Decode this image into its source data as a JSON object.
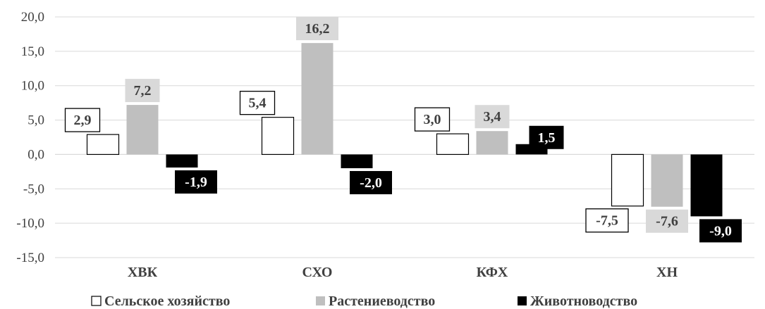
{
  "chart_data": {
    "type": "bar",
    "categories": [
      "ХВК",
      "СХО",
      "КФХ",
      "ХН"
    ],
    "series": [
      {
        "name": "Сельское хозяйство",
        "values": [
          2.9,
          5.4,
          3.0,
          -7.5
        ],
        "labels": [
          "2,9",
          "5,4",
          "3,0",
          "-7,5"
        ],
        "color": "#ffffff",
        "stroke": "#000000",
        "label_bg": "#ffffff",
        "label_fg": "#404040",
        "label_border": "#000000"
      },
      {
        "name": "Растениеводство",
        "values": [
          7.2,
          16.2,
          3.4,
          -7.6
        ],
        "labels": [
          "7,2",
          "16,2",
          "3,4",
          "-7,6"
        ],
        "color": "#bfbfbf",
        "stroke": "none",
        "label_bg": "#d9d9d9",
        "label_fg": "#404040",
        "label_border": "none"
      },
      {
        "name": "Животноводство",
        "values": [
          -1.9,
          -2.0,
          1.5,
          -9.0
        ],
        "labels": [
          "-1,9",
          "-2,0",
          "1,5",
          "-9,0"
        ],
        "color": "#000000",
        "stroke": "none",
        "label_bg": "#000000",
        "label_fg": "#ffffff",
        "label_border": "none"
      }
    ],
    "yticks": [
      20,
      15,
      10,
      5,
      0,
      -5,
      -10,
      -15
    ],
    "ytick_labels": [
      "20,0",
      "15,0",
      "10,0",
      "5,0",
      "0,0",
      "-5,0",
      "-10,0",
      "-15,0"
    ],
    "ylim": [
      -15,
      20
    ],
    "grid": true,
    "legend": "bottom"
  }
}
